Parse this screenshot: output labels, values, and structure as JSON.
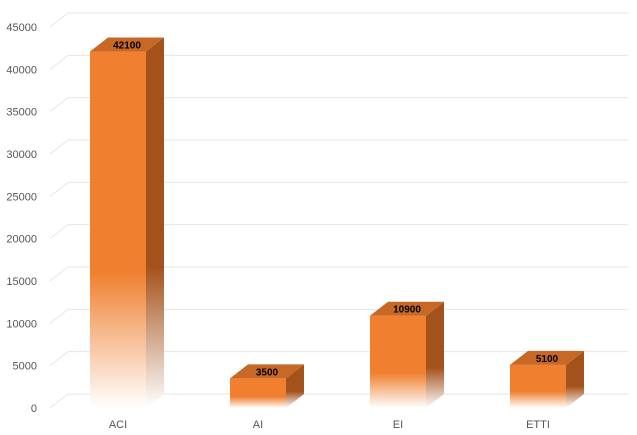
{
  "chart_data": {
    "type": "bar",
    "style": "3d-column",
    "categories": [
      "ACI",
      "AI",
      "EI",
      "ETTI"
    ],
    "values": [
      42100,
      3500,
      10900,
      5100
    ],
    "data_labels": [
      "42100",
      "3500",
      "10900",
      "5100"
    ],
    "ylim": [
      0,
      45000
    ],
    "yticks": [
      0,
      5000,
      10000,
      15000,
      20000,
      25000,
      30000,
      35000,
      40000,
      45000
    ],
    "ytick_labels": [
      "0",
      "5000",
      "10000",
      "15000",
      "20000",
      "25000",
      "30000",
      "35000",
      "40000",
      "45000"
    ],
    "grid": true,
    "legend": "none",
    "colors": {
      "bar_front": "#f08030",
      "bar_side": "#a4521c",
      "bar_top": "#c76826",
      "fade_to": "#ffffff",
      "grid": "#e6e6e6"
    }
  }
}
